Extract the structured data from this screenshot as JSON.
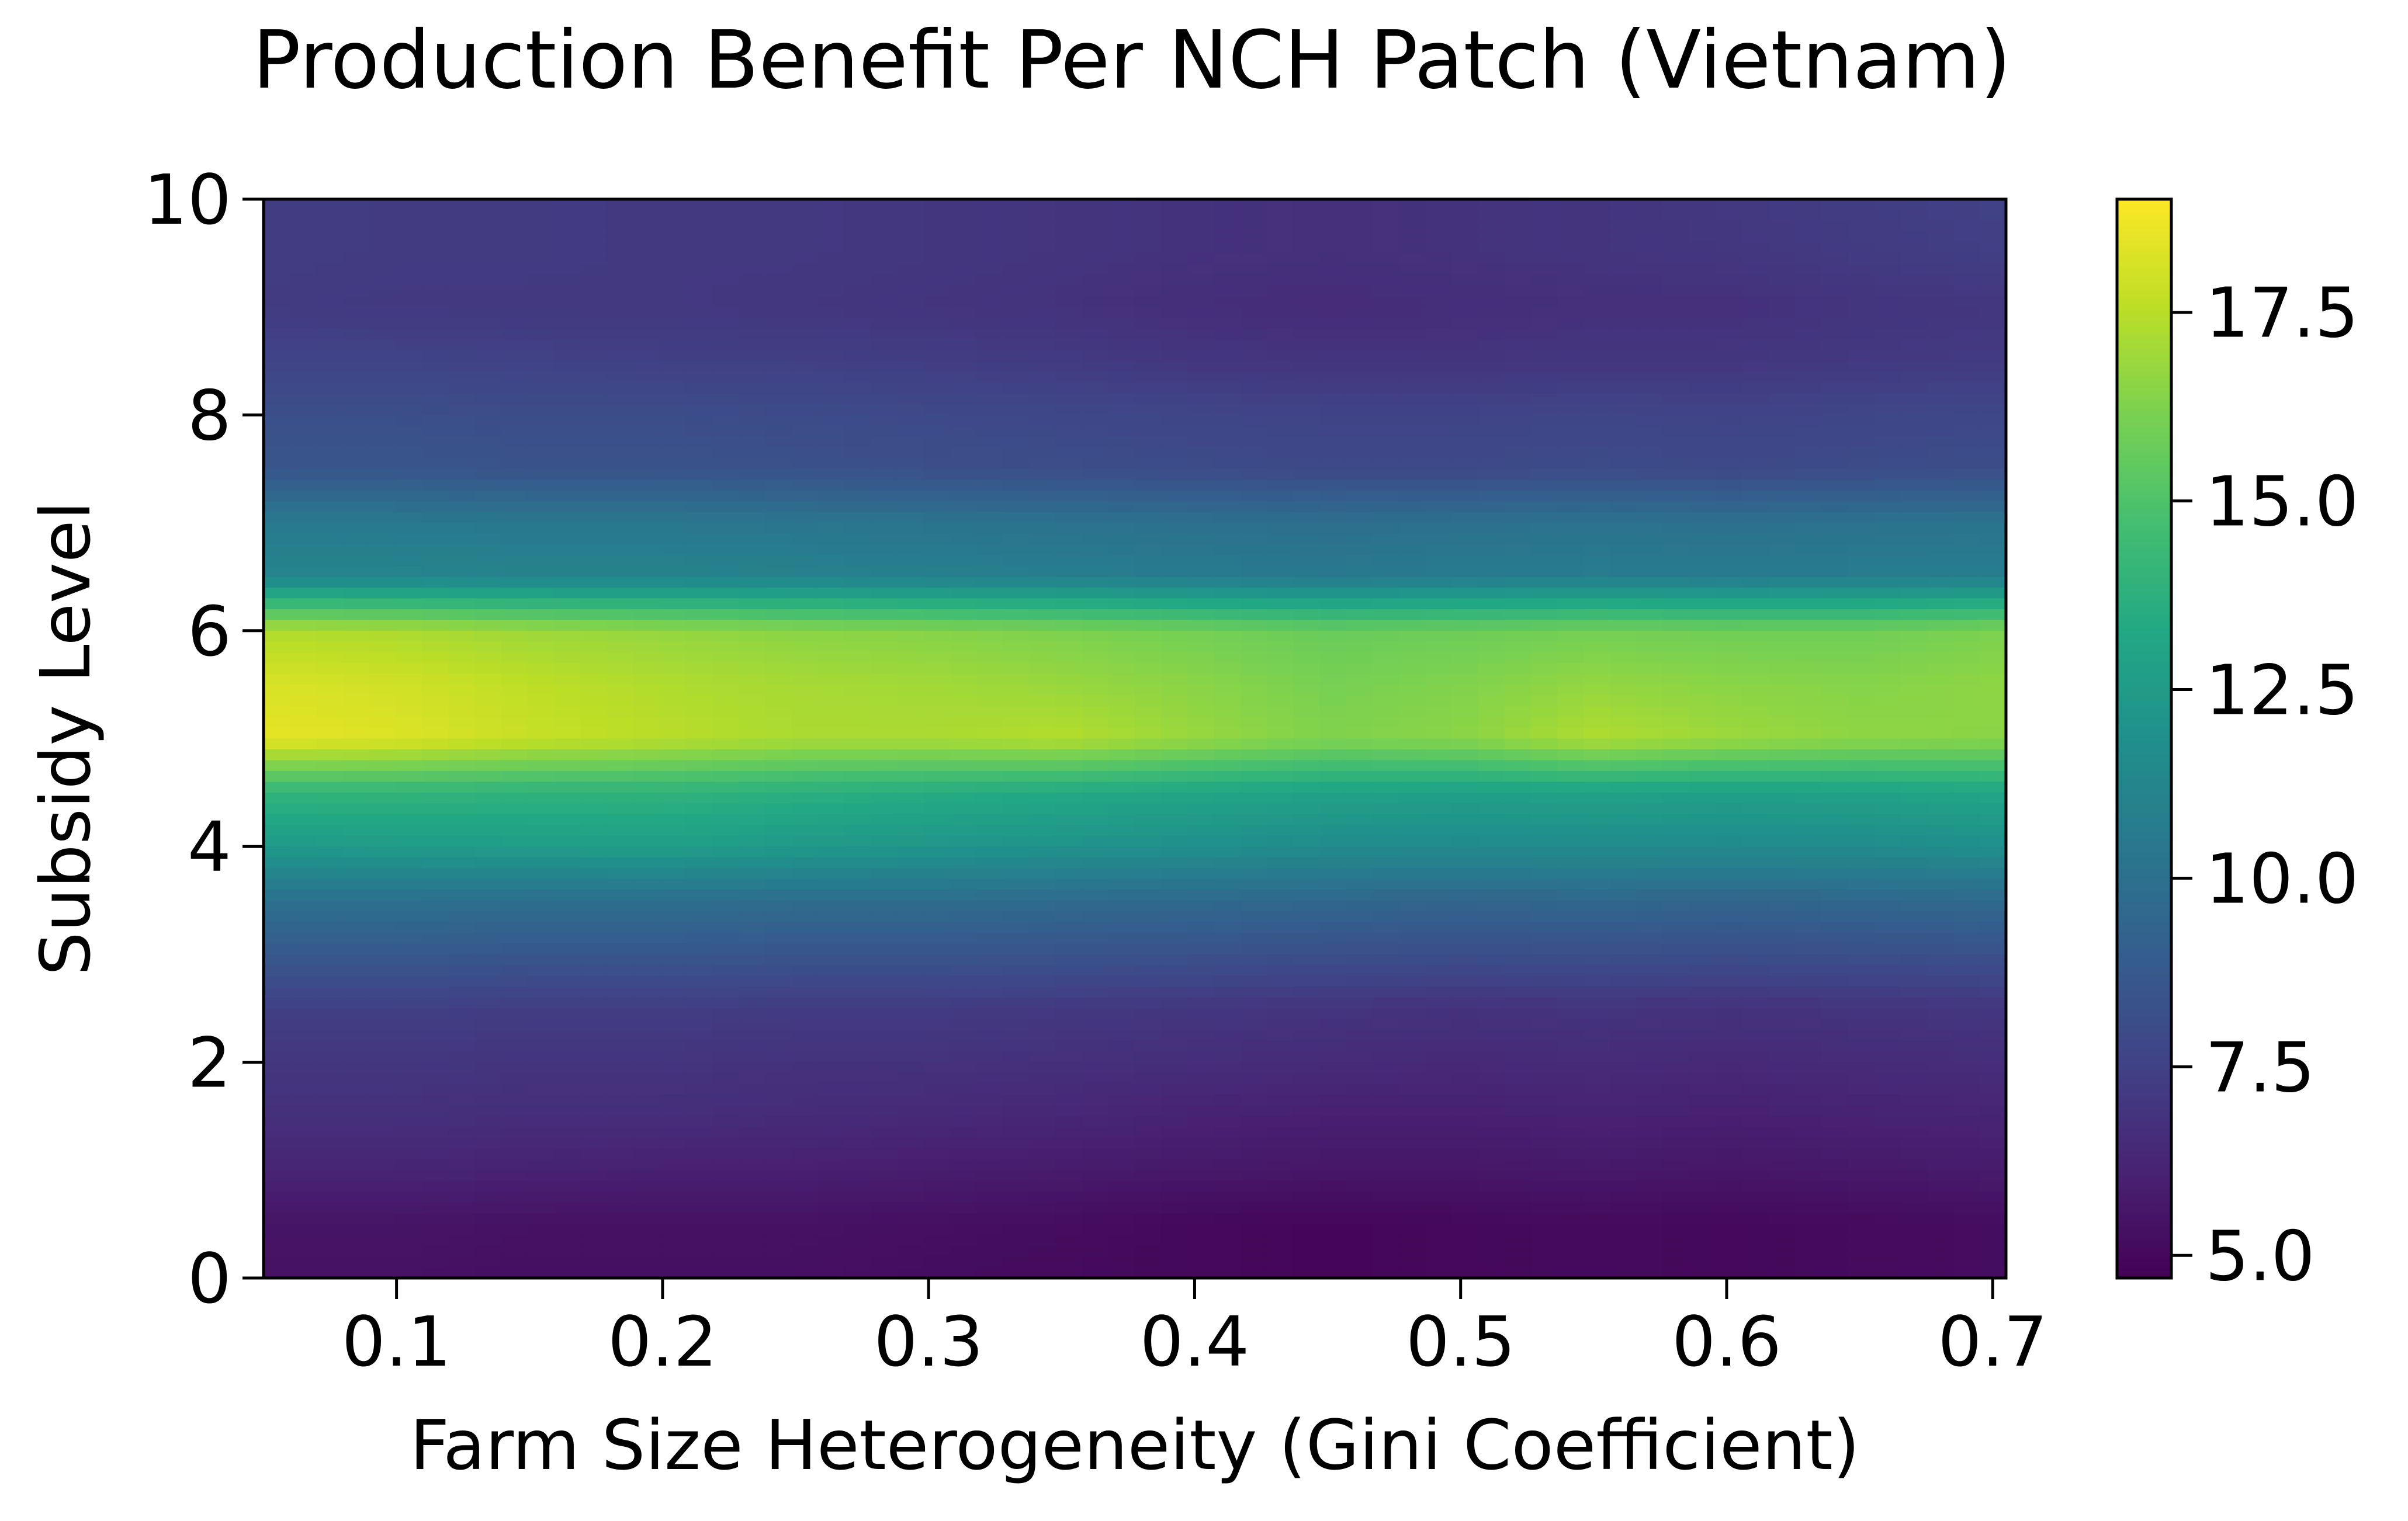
{
  "chart_data": {
    "type": "heatmap",
    "title": "Production Benefit Per NCH Patch (Vietnam)",
    "xlabel": "Farm Size Heterogeneity (Gini Coefficient)",
    "ylabel": "Subsidy Level",
    "xlim": [
      0.05,
      0.705
    ],
    "ylim": [
      0,
      10
    ],
    "xticks": [
      0.1,
      0.2,
      0.3,
      0.4,
      0.5,
      0.6,
      0.7
    ],
    "xtick_labels": [
      "0.1",
      "0.2",
      "0.3",
      "0.4",
      "0.5",
      "0.6",
      "0.7"
    ],
    "yticks": [
      0,
      2,
      4,
      6,
      8,
      10
    ],
    "ytick_labels": [
      "0",
      "2",
      "4",
      "6",
      "8",
      "10"
    ],
    "colormap": "viridis",
    "colorbar": {
      "vmin": 4.7,
      "vmax": 19.0,
      "ticks": [
        5.0,
        7.5,
        10.0,
        12.5,
        15.0,
        17.5
      ],
      "tick_labels": [
        "5.0",
        "7.5",
        "10.0",
        "12.5",
        "15.0",
        "17.5"
      ]
    },
    "x": [
      0.05,
      0.1,
      0.15,
      0.2,
      0.25,
      0.3,
      0.35,
      0.4,
      0.45,
      0.5,
      0.55,
      0.6,
      0.65,
      0.705
    ],
    "y": [
      0,
      0.5,
      1,
      1.5,
      2,
      2.5,
      3,
      3.5,
      4,
      4.5,
      5,
      5.5,
      6,
      6.5,
      7,
      7.5,
      8,
      8.5,
      9,
      9.5,
      10
    ],
    "z": [
      [
        5.4,
        5.4,
        5.3,
        5.3,
        5.3,
        5.2,
        5.1,
        5.0,
        4.9,
        5.0,
        5.1,
        5.0,
        5.1,
        5.2
      ],
      [
        5.5,
        5.5,
        5.4,
        5.4,
        5.4,
        5.3,
        5.2,
        5.0,
        4.9,
        5.0,
        5.1,
        5.0,
        5.1,
        5.2
      ],
      [
        6.2,
        6.2,
        6.1,
        6.0,
        6.0,
        5.9,
        5.8,
        5.7,
        5.6,
        5.6,
        5.7,
        5.6,
        5.7,
        5.8
      ],
      [
        6.7,
        6.7,
        6.6,
        6.6,
        6.5,
        6.4,
        6.3,
        6.1,
        6.0,
        6.0,
        6.1,
        6.0,
        6.1,
        6.2
      ],
      [
        7.0,
        7.0,
        6.9,
        6.9,
        6.8,
        6.8,
        6.7,
        6.6,
        6.5,
        6.4,
        6.5,
        6.4,
        6.5,
        6.6
      ],
      [
        7.4,
        7.4,
        7.3,
        7.3,
        7.2,
        7.2,
        7.1,
        7.0,
        6.9,
        6.8,
        6.9,
        6.8,
        6.9,
        7.0
      ],
      [
        8.7,
        8.7,
        8.6,
        8.6,
        8.5,
        8.5,
        8.4,
        8.3,
        8.2,
        8.1,
        8.2,
        8.1,
        8.2,
        8.3
      ],
      [
        10.0,
        10.0,
        9.9,
        9.9,
        9.8,
        9.8,
        9.7,
        9.6,
        9.5,
        9.4,
        9.5,
        9.4,
        9.5,
        9.6
      ],
      [
        12.4,
        12.5,
        12.6,
        12.7,
        12.4,
        12.2,
        12.0,
        11.8,
        11.6,
        11.5,
        11.6,
        11.5,
        11.6,
        11.8
      ],
      [
        14.0,
        14.0,
        13.9,
        13.9,
        13.7,
        13.5,
        13.3,
        13.1,
        12.9,
        12.8,
        12.9,
        12.8,
        12.9,
        13.1
      ],
      [
        18.5,
        18.3,
        17.8,
        17.5,
        17.2,
        17.2,
        17.4,
        16.8,
        16.3,
        16.5,
        17.3,
        16.9,
        16.6,
        16.5
      ],
      [
        18.2,
        18.0,
        17.6,
        17.3,
        17.1,
        17.0,
        16.8,
        16.5,
        16.1,
        16.3,
        16.7,
        16.5,
        16.4,
        16.6
      ],
      [
        17.3,
        17.2,
        16.9,
        16.7,
        16.5,
        16.4,
        16.2,
        16.0,
        15.7,
        15.8,
        16.0,
        15.9,
        15.9,
        16.2
      ],
      [
        11.2,
        11.2,
        11.1,
        11.1,
        11.0,
        10.9,
        10.8,
        10.6,
        10.5,
        10.6,
        10.7,
        10.6,
        10.7,
        10.8
      ],
      [
        10.5,
        10.5,
        10.4,
        10.4,
        10.3,
        10.2,
        10.1,
        10.0,
        9.9,
        10.0,
        10.1,
        10.0,
        10.1,
        10.2
      ],
      [
        8.5,
        8.5,
        8.4,
        8.4,
        8.3,
        8.2,
        8.1,
        8.0,
        7.9,
        7.9,
        8.0,
        7.9,
        8.0,
        8.1
      ],
      [
        8.2,
        8.2,
        8.1,
        8.1,
        8.0,
        7.9,
        7.8,
        7.7,
        7.6,
        7.6,
        7.7,
        7.6,
        7.7,
        7.8
      ],
      [
        7.6,
        7.6,
        7.5,
        7.4,
        7.4,
        7.3,
        7.2,
        7.0,
        6.9,
        6.9,
        7.0,
        7.0,
        7.1,
        7.2
      ],
      [
        7.2,
        7.1,
        7.1,
        7.1,
        7.0,
        6.9,
        6.8,
        6.6,
        6.5,
        6.6,
        6.7,
        6.7,
        6.9,
        7.0
      ],
      [
        7.3,
        7.2,
        7.2,
        7.1,
        7.1,
        7.0,
        6.9,
        6.8,
        6.7,
        6.8,
        6.9,
        7.0,
        7.2,
        7.4
      ],
      [
        7.3,
        7.2,
        7.2,
        7.1,
        7.1,
        7.0,
        6.9,
        6.8,
        6.7,
        6.8,
        6.9,
        7.1,
        7.3,
        7.5
      ]
    ]
  }
}
